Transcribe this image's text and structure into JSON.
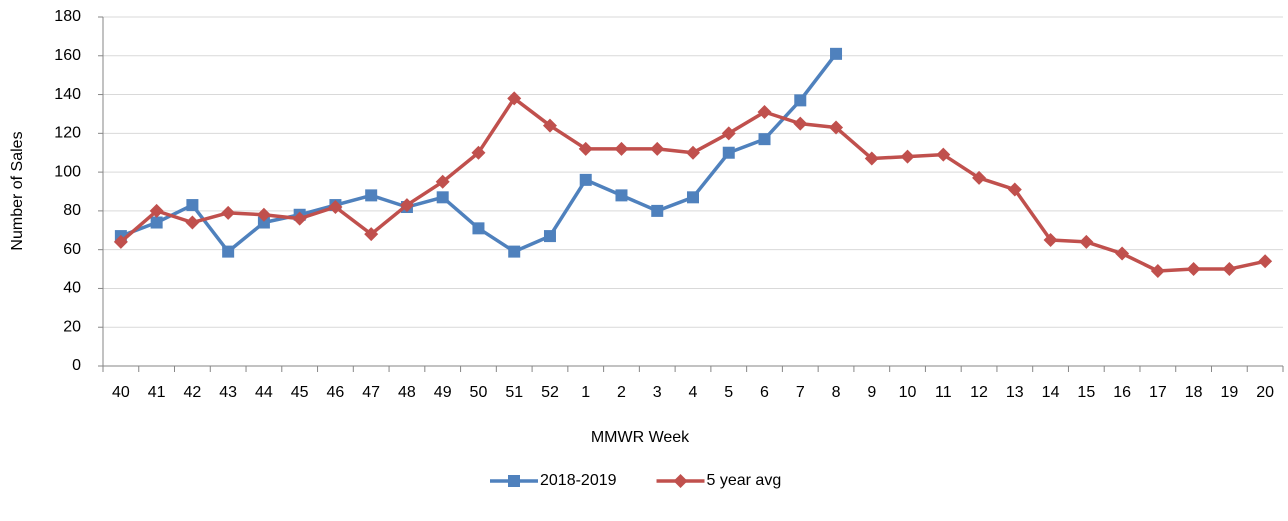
{
  "chart_data": {
    "type": "line",
    "x_label": "MMWR Week",
    "y_label": "Number of Sales",
    "categories": [
      "40",
      "41",
      "42",
      "43",
      "44",
      "45",
      "46",
      "47",
      "48",
      "49",
      "50",
      "51",
      "52",
      "1",
      "2",
      "3",
      "4",
      "5",
      "6",
      "7",
      "8",
      "9",
      "10",
      "11",
      "12",
      "13",
      "14",
      "15",
      "16",
      "17",
      "18",
      "19",
      "20"
    ],
    "series": [
      {
        "name": "2018-2019",
        "color": "#4f81bd",
        "marker": "square",
        "values": [
          67,
          74,
          83,
          59,
          74,
          78,
          83,
          88,
          82,
          87,
          71,
          59,
          67,
          96,
          88,
          80,
          87,
          110,
          117,
          137,
          161,
          null,
          null,
          null,
          null,
          null,
          null,
          null,
          null,
          null,
          null,
          null,
          null
        ]
      },
      {
        "name": "5 year avg",
        "color": "#c0504d",
        "marker": "diamond",
        "values": [
          64,
          80,
          74,
          79,
          78,
          76,
          82,
          68,
          83,
          95,
          110,
          138,
          124,
          112,
          112,
          112,
          110,
          120,
          131,
          125,
          123,
          107,
          108,
          109,
          97,
          91,
          65,
          64,
          58,
          49,
          50,
          50,
          54
        ]
      }
    ],
    "ylim": [
      0,
      180
    ],
    "yticks": [
      0,
      20,
      40,
      60,
      80,
      100,
      120,
      140,
      160,
      180
    ],
    "grid": true,
    "legend": "bottom"
  }
}
